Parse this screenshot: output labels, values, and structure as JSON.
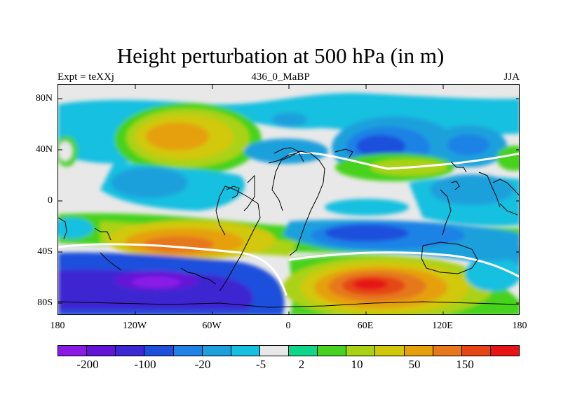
{
  "header": {
    "title": "Height perturbation at 500 hPa (in m)",
    "left_label": "Expt = teXXj",
    "center_label": "436_0_MaBP",
    "right_label": "JJA"
  },
  "axes": {
    "y_ticks": [
      "80N",
      "40N",
      "0",
      "40S",
      "80S"
    ],
    "x_ticks": [
      "180",
      "120W",
      "60W",
      "0",
      "60E",
      "120E",
      "180"
    ]
  },
  "colorbar": {
    "colors": [
      "#8a1ae6",
      "#6414d6",
      "#3c28d2",
      "#1e50dc",
      "#1e82e6",
      "#1ea0dc",
      "#18c0e0",
      "#e8e8e8",
      "#10d68a",
      "#46d21e",
      "#aad214",
      "#d2c80a",
      "#e6a00a",
      "#e6781e",
      "#e64616",
      "#e61414"
    ],
    "labels": [
      "-200",
      "-100",
      "-20",
      "-5",
      "2",
      "10",
      "50",
      "150"
    ]
  },
  "map": {
    "projection": "cylindrical-equidistant",
    "season": "JJA",
    "field": "500 hPa height perturbation"
  }
}
